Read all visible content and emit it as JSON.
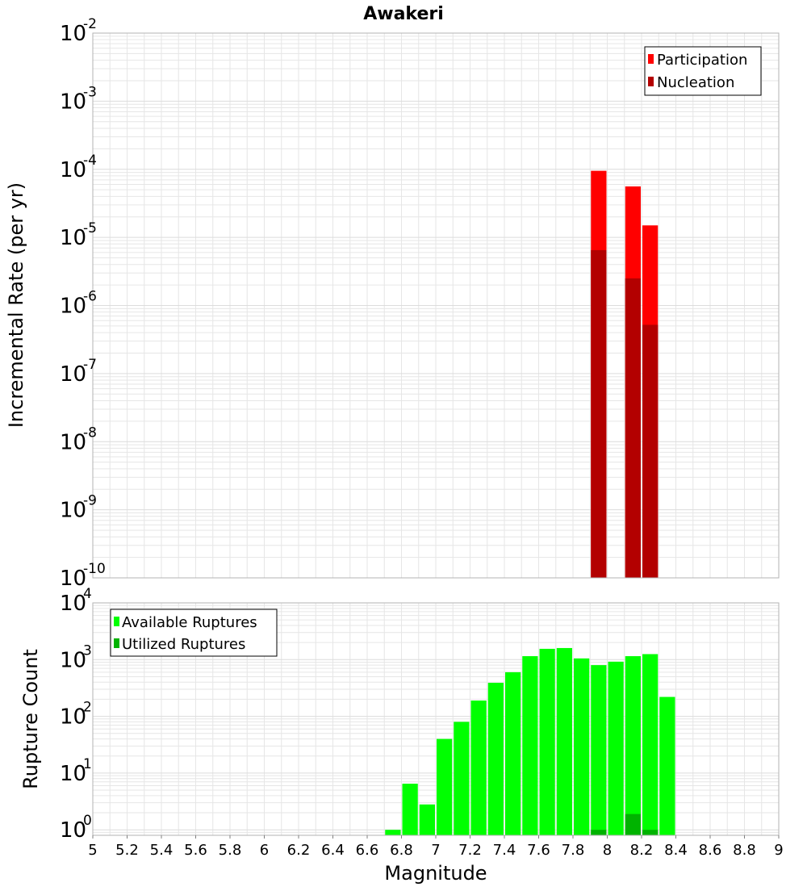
{
  "title": "Awakeri",
  "colors": {
    "participation": "#ff0000",
    "nucleation": "#b30000",
    "available": "#00ff00",
    "utilized": "#00b300",
    "grid": "#e6e6e6",
    "frame": "#b3b3b3"
  },
  "chart_data": [
    {
      "type": "bar",
      "id": "rate",
      "title": "Awakeri",
      "ylabel": "Incremental Rate (per yr)",
      "xlabel": "",
      "yscale": "log",
      "xlim": [
        5,
        9
      ],
      "ylim": [
        1e-10,
        0.01
      ],
      "grid": true,
      "legend_position": "top-right",
      "y_ticks": [
        {
          "base": "10",
          "exp": "-10",
          "value": 1e-10
        },
        {
          "base": "10",
          "exp": "-9",
          "value": 1e-09
        },
        {
          "base": "10",
          "exp": "-8",
          "value": 1e-08
        },
        {
          "base": "10",
          "exp": "-7",
          "value": 1e-07
        },
        {
          "base": "10",
          "exp": "-6",
          "value": 1e-06
        },
        {
          "base": "10",
          "exp": "-5",
          "value": 1e-05
        },
        {
          "base": "10",
          "exp": "-4",
          "value": 0.0001
        },
        {
          "base": "10",
          "exp": "-3",
          "value": 0.001
        },
        {
          "base": "10",
          "exp": "-2",
          "value": 0.01
        }
      ],
      "bin_width": 0.1,
      "series": [
        {
          "name": "Participation",
          "color_key": "participation",
          "points": [
            [
              7.95,
              9.5e-05
            ],
            [
              8.15,
              5.6e-05
            ],
            [
              8.25,
              1.5e-05
            ]
          ]
        },
        {
          "name": "Nucleation",
          "color_key": "nucleation",
          "points": [
            [
              7.95,
              6.5e-06
            ],
            [
              8.15,
              2.5e-06
            ],
            [
              8.25,
              5.2e-07
            ]
          ]
        }
      ]
    },
    {
      "type": "bar",
      "id": "count",
      "ylabel": "Rupture Count",
      "xlabel": "Magnitude",
      "yscale": "log",
      "xlim": [
        5,
        9
      ],
      "ylim": [
        0.8,
        10000
      ],
      "grid": true,
      "legend_position": "top-left",
      "x_ticks": [
        "5",
        "5.2",
        "5.4",
        "5.6",
        "5.8",
        "6",
        "6.2",
        "6.4",
        "6.6",
        "6.8",
        "7",
        "7.2",
        "7.4",
        "7.6",
        "7.8",
        "8",
        "8.2",
        "8.4",
        "8.6",
        "8.8",
        "9"
      ],
      "y_ticks": [
        {
          "base": "10",
          "exp": "0",
          "value": 1
        },
        {
          "base": "10",
          "exp": "1",
          "value": 10
        },
        {
          "base": "10",
          "exp": "2",
          "value": 100
        },
        {
          "base": "10",
          "exp": "3",
          "value": 1000
        },
        {
          "base": "10",
          "exp": "4",
          "value": 10000
        }
      ],
      "bin_width": 0.1,
      "series": [
        {
          "name": "Available Ruptures",
          "color_key": "available",
          "points": [
            [
              6.75,
              1
            ],
            [
              6.85,
              6.5
            ],
            [
              6.95,
              2.8
            ],
            [
              7.05,
              40
            ],
            [
              7.15,
              80
            ],
            [
              7.25,
              190
            ],
            [
              7.35,
              390
            ],
            [
              7.45,
              600
            ],
            [
              7.55,
              1150
            ],
            [
              7.65,
              1550
            ],
            [
              7.75,
              1600
            ],
            [
              7.85,
              1050
            ],
            [
              7.95,
              800
            ],
            [
              8.05,
              920
            ],
            [
              8.15,
              1150
            ],
            [
              8.25,
              1250
            ],
            [
              8.35,
              220
            ]
          ]
        },
        {
          "name": "Utilized Ruptures",
          "color_key": "utilized",
          "points": [
            [
              7.95,
              1
            ],
            [
              8.15,
              1.9
            ],
            [
              8.25,
              1
            ]
          ]
        }
      ]
    }
  ]
}
